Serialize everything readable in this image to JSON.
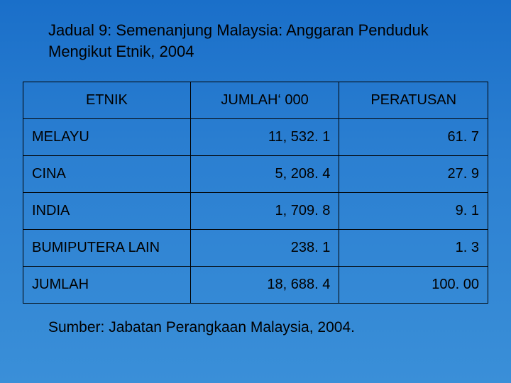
{
  "title": "Jadual 9: Semenanjung Malaysia: Anggaran Penduduk Mengikut Etnik, 2004",
  "table": {
    "columns": [
      "ETNIK",
      "JUMLAH‘ 000",
      "PERATUSAN"
    ],
    "column_align": [
      "center",
      "center",
      "center"
    ],
    "col_widths_pct": [
      36,
      32,
      32
    ],
    "header_fontsize": 20,
    "cell_fontsize": 20,
    "border_color": "#000000",
    "text_color": "#000000",
    "background_color": "transparent",
    "rows": [
      {
        "label": "MELAYU",
        "jumlah": "11, 532. 1",
        "peratusan": "61. 7"
      },
      {
        "label": "CINA",
        "jumlah": "5, 208. 4",
        "peratusan": "27. 9"
      },
      {
        "label": "INDIA",
        "jumlah": "1, 709. 8",
        "peratusan": "9. 1"
      },
      {
        "label": "BUMIPUTERA LAIN",
        "jumlah": "238. 1",
        "peratusan": "1. 3"
      },
      {
        "label": "JUMLAH",
        "jumlah": "18, 688. 4",
        "peratusan": "100. 00"
      }
    ]
  },
  "source": "Sumber: Jabatan Perangkaan Malaysia, 2004.",
  "colors": {
    "background_gradient_top": "#1a6fc9",
    "background_gradient_mid": "#2b7fd1",
    "background_gradient_bottom": "#3a8fd8",
    "text": "#000000",
    "border": "#000000"
  },
  "typography": {
    "title_fontsize": 22,
    "source_fontsize": 21,
    "font_family": "Arial"
  }
}
